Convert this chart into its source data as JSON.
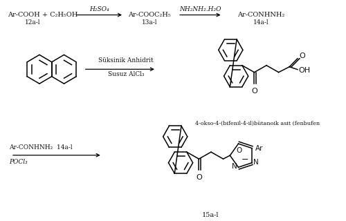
{
  "bg_color": "#ffffff",
  "text_color": "#111111",
  "figsize": [
    5.0,
    3.2
  ],
  "dpi": 100,
  "labels": {
    "reactant1": "Ar-COOH + C₂H₅OH",
    "sub1": "12a-l",
    "arrow1_reagent": "H₂SO₄",
    "product1": "Ar-COOC₂H₅",
    "sub2": "13a-l",
    "arrow2_reagent": "NH₂NH₂.H₂O",
    "product2": "Ar-CONHNH₂",
    "sub3": "14a-l",
    "middle_r1": "Süksinik Anhidrit",
    "middle_r2": "Susuz AlCl₃",
    "fenbufen": "4-okso-4-(bifenil-4-il)bütanoik asit (fenbufen",
    "bot_r1": "Ar-CONHNH₂  14a-l",
    "bot_r2": "POCl₃",
    "product3_label": "15a-l",
    "O": "O",
    "OH": "OH",
    "N": "N",
    "Ar": "Ar"
  }
}
